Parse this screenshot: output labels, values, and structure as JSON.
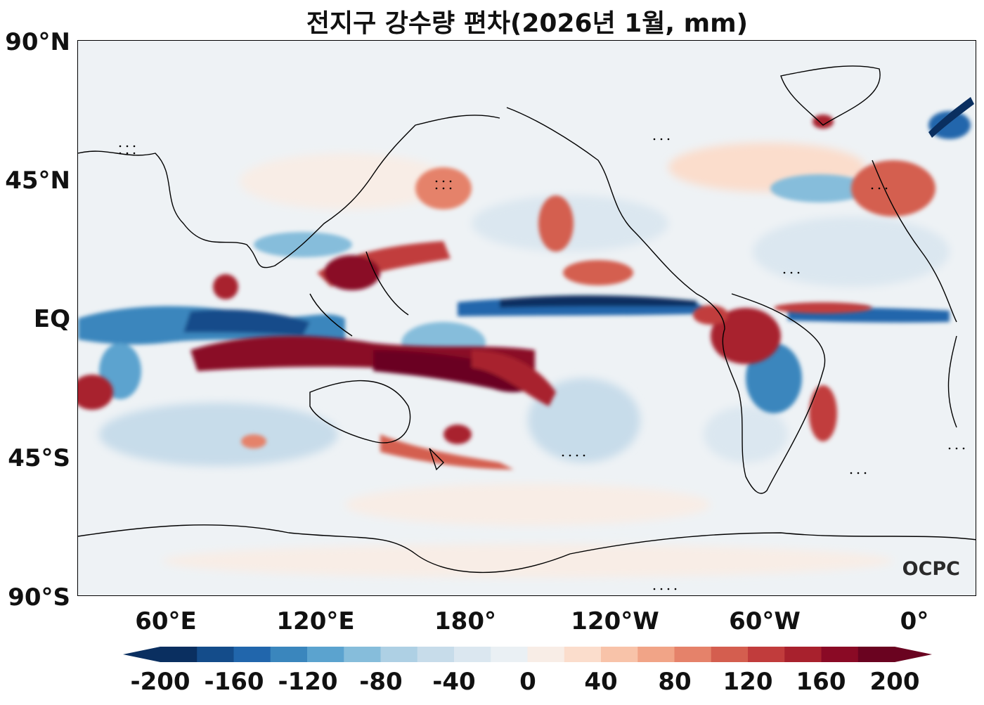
{
  "title": "전지구 강수량 편차(2026년 1월, mm)",
  "lat_labels": [
    "90°N",
    "45°N",
    "EQ",
    "45°S",
    "90°S"
  ],
  "lon_labels": [
    "60°E",
    "120°E",
    "180°",
    "120°W",
    "60°W",
    "0°"
  ],
  "colorbar": {
    "ticks": [
      "-200",
      "-160",
      "-120",
      "-80",
      "-40",
      "0",
      "40",
      "80",
      "120",
      "160",
      "200"
    ],
    "colors": [
      "#0a2f60",
      "#144c8a",
      "#2166ac",
      "#3a86bd",
      "#5ba3cf",
      "#86bddb",
      "#aed0e4",
      "#c7dcea",
      "#dbe7f0",
      "#eaf0f4",
      "#f8ede6",
      "#fbddcc",
      "#f8c3a9",
      "#f1a487",
      "#e5826a",
      "#d45e4f",
      "#c13c3c",
      "#a8212d",
      "#8a0a25",
      "#6a0320"
    ],
    "extend": "both"
  },
  "logo": "OCPC",
  "palette": {
    "dry": "#2166ac",
    "wet": "#a8212d",
    "neutral": "#eef2f5",
    "coast": "#000000"
  }
}
